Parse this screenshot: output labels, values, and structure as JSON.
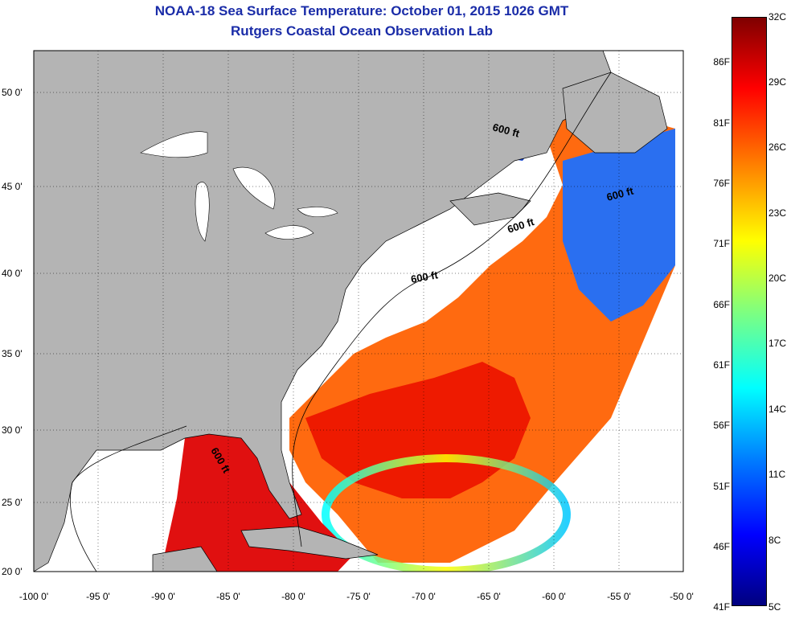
{
  "title_line1": "NOAA-18 Sea Surface Temperature:  October 01, 2015 1026 GMT",
  "title_line2": "Rutgers Coastal Ocean Observation Lab",
  "map": {
    "lon_range": [
      -100,
      -50
    ],
    "lat_range": [
      20,
      52.5
    ],
    "lat_ticks": [
      "50 0'",
      "45 0'",
      "40 0'",
      "35 0'",
      "30 0'",
      "25 0'",
      "20 0'"
    ],
    "lon_ticks": [
      "-100 0'",
      "-95 0'",
      "-90 0'",
      "-85 0'",
      "-80 0'",
      "-75 0'",
      "-70 0'",
      "-65 0'",
      "-60 0'",
      "-55 0'",
      "-50 0'"
    ],
    "contour_labels": [
      "600 ft",
      "600 ft",
      "600 ft",
      "600 ft",
      "600 ft"
    ],
    "land_color": "#b4b4b4",
    "grid": true
  },
  "colorbar": {
    "fahrenheit_labels": [
      "86F",
      "81F",
      "76F",
      "71F",
      "66F",
      "61F",
      "56F",
      "51F",
      "46F",
      "41F"
    ],
    "celsius_labels": [
      "32C",
      "29C",
      "26C",
      "23C",
      "20C",
      "17C",
      "14C",
      "11C",
      "8C",
      "5C"
    ],
    "range_c": [
      5,
      32
    ],
    "colormap": "jet"
  }
}
